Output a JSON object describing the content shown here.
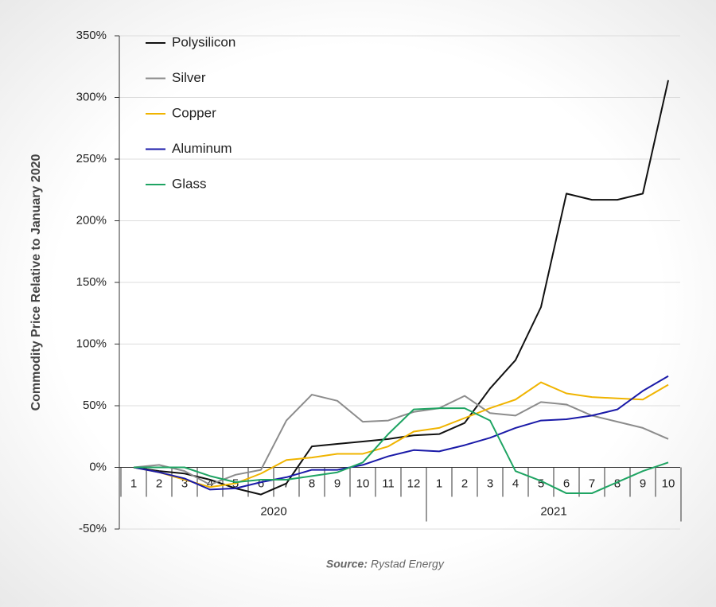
{
  "chart_data": {
    "type": "line",
    "y_axis_label": "Commodity Price Relative to January 2020",
    "categories": [
      "1",
      "2",
      "3",
      "4",
      "5",
      "6",
      "7",
      "8",
      "9",
      "10",
      "11",
      "12",
      "1",
      "2",
      "3",
      "4",
      "5",
      "6",
      "7",
      "8",
      "9",
      "10"
    ],
    "category_groups": [
      "2020",
      "2021"
    ],
    "ylim": [
      -50,
      350
    ],
    "yticks": [
      {
        "value": -50,
        "label": "-50%"
      },
      {
        "value": 0,
        "label": "0%"
      },
      {
        "value": 50,
        "label": "50%"
      },
      {
        "value": 100,
        "label": "100%"
      },
      {
        "value": 150,
        "label": "150%"
      },
      {
        "value": 200,
        "label": "200%"
      },
      {
        "value": 250,
        "label": "250%"
      },
      {
        "value": 300,
        "label": "300%"
      },
      {
        "value": 350,
        "label": "350%"
      }
    ],
    "grid": true,
    "legend": "upper left",
    "series": [
      {
        "name": "Polysilicon",
        "color": "#111111",
        "values": [
          0,
          -3,
          -5,
          -10,
          -17,
          -22,
          -13,
          17,
          19,
          21,
          23,
          26,
          27,
          36,
          64,
          87,
          130,
          222,
          217,
          217,
          222,
          314
        ]
      },
      {
        "name": "Silver",
        "color": "#8c8c8c",
        "values": [
          0,
          2,
          -3,
          -14,
          -6,
          -2,
          38,
          59,
          54,
          37,
          38,
          45,
          48,
          58,
          44,
          42,
          53,
          51,
          42,
          37,
          32,
          23
        ]
      },
      {
        "name": "Copper",
        "color": "#f0b400",
        "values": [
          0,
          -4,
          -10,
          -16,
          -13,
          -5,
          6,
          8,
          11,
          11,
          17,
          29,
          32,
          40,
          48,
          55,
          69,
          60,
          57,
          56,
          55,
          67
        ]
      },
      {
        "name": "Aluminum",
        "color": "#1a1aa8",
        "values": [
          0,
          -4,
          -9,
          -18,
          -17,
          -12,
          -8,
          -2,
          -2,
          2,
          9,
          14,
          13,
          18,
          24,
          32,
          38,
          39,
          42,
          47,
          62,
          74
        ]
      },
      {
        "name": "Glass",
        "color": "#1fa463",
        "values": [
          0,
          0,
          0,
          -7,
          -12,
          -10,
          -10,
          -7,
          -4,
          4,
          27,
          47,
          48,
          48,
          38,
          -3,
          -11,
          -21,
          -21,
          -12,
          -3,
          4
        ]
      }
    ],
    "source": {
      "label": "Source:",
      "text": "Rystad Energy"
    }
  }
}
